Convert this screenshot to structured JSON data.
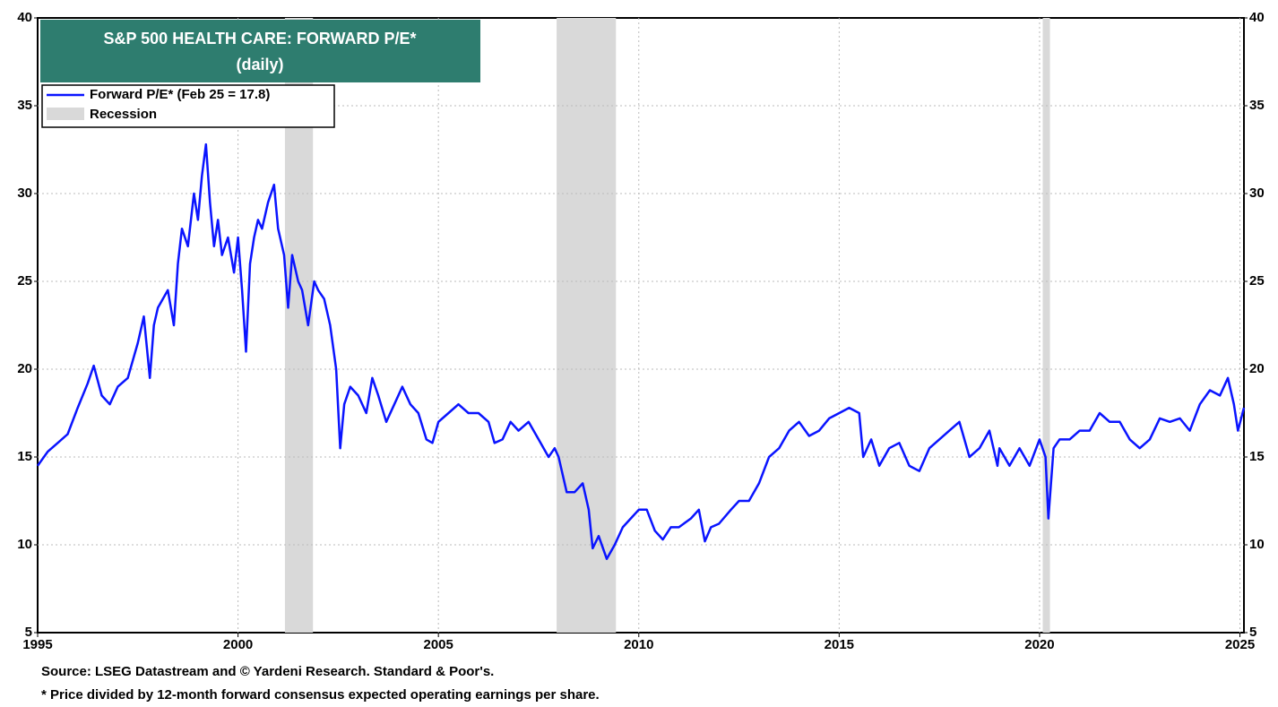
{
  "chart_data": {
    "type": "line",
    "title": "S&P 500 HEALTH CARE: FORWARD P/E*",
    "subtitle": "(daily)",
    "xlim": [
      1995,
      2025.1
    ],
    "xticks": [
      1995,
      2000,
      2005,
      2010,
      2015,
      2020,
      2025
    ],
    "ylim": [
      5,
      40
    ],
    "yticks": [
      5,
      10,
      15,
      20,
      25,
      30,
      35,
      40
    ],
    "grid": true,
    "recession": {
      "name": "Recession",
      "color": "#d9d9d9",
      "periods": [
        [
          2001.17,
          2001.87
        ],
        [
          2007.95,
          2009.43
        ],
        [
          2020.08,
          2020.26
        ]
      ]
    },
    "series": [
      {
        "name": "Forward P/E* (Feb 25 = 17.8)",
        "color": "#0a14ff",
        "x": [
          1995.0,
          1995.25,
          1995.5,
          1995.75,
          1996.0,
          1996.25,
          1996.4,
          1996.6,
          1996.8,
          1997.0,
          1997.25,
          1997.5,
          1997.65,
          1997.8,
          1997.9,
          1998.0,
          1998.25,
          1998.4,
          1998.5,
          1998.6,
          1998.75,
          1998.9,
          1999.0,
          1999.1,
          1999.2,
          1999.3,
          1999.4,
          1999.5,
          1999.6,
          1999.75,
          1999.9,
          2000.0,
          2000.1,
          2000.2,
          2000.3,
          2000.4,
          2000.5,
          2000.6,
          2000.75,
          2000.9,
          2001.0,
          2001.15,
          2001.25,
          2001.35,
          2001.5,
          2001.6,
          2001.75,
          2001.9,
          2002.0,
          2002.15,
          2002.3,
          2002.45,
          2002.55,
          2002.65,
          2002.8,
          2003.0,
          2003.2,
          2003.35,
          2003.5,
          2003.7,
          2003.9,
          2004.1,
          2004.3,
          2004.5,
          2004.7,
          2004.85,
          2005.0,
          2005.25,
          2005.5,
          2005.75,
          2006.0,
          2006.25,
          2006.4,
          2006.6,
          2006.8,
          2007.0,
          2007.25,
          2007.5,
          2007.75,
          2007.9,
          2008.0,
          2008.2,
          2008.4,
          2008.6,
          2008.75,
          2008.85,
          2009.0,
          2009.2,
          2009.4,
          2009.6,
          2009.8,
          2010.0,
          2010.2,
          2010.4,
          2010.6,
          2010.8,
          2011.0,
          2011.3,
          2011.5,
          2011.65,
          2011.8,
          2012.0,
          2012.3,
          2012.5,
          2012.75,
          2013.0,
          2013.25,
          2013.5,
          2013.75,
          2014.0,
          2014.25,
          2014.5,
          2014.75,
          2015.0,
          2015.25,
          2015.5,
          2015.6,
          2015.8,
          2016.0,
          2016.25,
          2016.5,
          2016.75,
          2017.0,
          2017.25,
          2017.5,
          2017.75,
          2018.0,
          2018.1,
          2018.25,
          2018.5,
          2018.75,
          2018.95,
          2019.0,
          2019.25,
          2019.5,
          2019.75,
          2020.0,
          2020.15,
          2020.22,
          2020.35,
          2020.5,
          2020.75,
          2021.0,
          2021.25,
          2021.5,
          2021.75,
          2022.0,
          2022.25,
          2022.5,
          2022.75,
          2023.0,
          2023.25,
          2023.5,
          2023.75,
          2024.0,
          2024.25,
          2024.5,
          2024.7,
          2024.85,
          2024.95,
          2025.1
        ],
        "values": [
          14.5,
          15.3,
          15.8,
          16.3,
          17.8,
          19.2,
          20.2,
          18.5,
          18.0,
          19.0,
          19.5,
          21.5,
          23.0,
          19.5,
          22.5,
          23.5,
          24.5,
          22.5,
          26.0,
          28.0,
          27.0,
          30.0,
          28.5,
          31.0,
          32.8,
          29.5,
          27.0,
          28.5,
          26.5,
          27.5,
          25.5,
          27.5,
          24.5,
          21.0,
          26.0,
          27.5,
          28.5,
          28.0,
          29.5,
          30.5,
          28.0,
          26.5,
          23.5,
          26.5,
          25.0,
          24.5,
          22.5,
          25.0,
          24.5,
          24.0,
          22.5,
          20.0,
          15.5,
          18.0,
          19.0,
          18.5,
          17.5,
          19.5,
          18.5,
          17.0,
          18.0,
          19.0,
          18.0,
          17.5,
          16.0,
          15.8,
          17.0,
          17.5,
          18.0,
          17.5,
          17.5,
          17.0,
          15.8,
          16.0,
          17.0,
          16.5,
          17.0,
          16.0,
          15.0,
          15.5,
          15.0,
          13.0,
          13.0,
          13.5,
          12.0,
          9.8,
          10.5,
          9.2,
          10.0,
          11.0,
          11.5,
          12.0,
          12.0,
          10.8,
          10.3,
          11.0,
          11.0,
          11.5,
          12.0,
          10.2,
          11.0,
          11.2,
          12.0,
          12.5,
          12.5,
          13.5,
          15.0,
          15.5,
          16.5,
          17.0,
          16.2,
          16.5,
          17.2,
          17.5,
          17.8,
          17.5,
          15.0,
          16.0,
          14.5,
          15.5,
          15.8,
          14.5,
          14.2,
          15.5,
          16.0,
          16.5,
          17.0,
          16.2,
          15.0,
          15.5,
          16.5,
          14.5,
          15.5,
          14.5,
          15.5,
          14.5,
          16.0,
          15.0,
          11.5,
          15.5,
          16.0,
          16.0,
          16.5,
          16.5,
          17.5,
          17.0,
          17.0,
          16.0,
          15.5,
          16.0,
          17.2,
          17.0,
          17.2,
          16.5,
          18.0,
          18.8,
          18.5,
          19.5,
          18.0,
          16.5,
          17.8
        ]
      }
    ],
    "notes": [
      "Source: LSEG Datastream and © Yardeni Research. Standard & Poor's.",
      "* Price divided by 12-month forward consensus expected operating earnings per share."
    ]
  }
}
